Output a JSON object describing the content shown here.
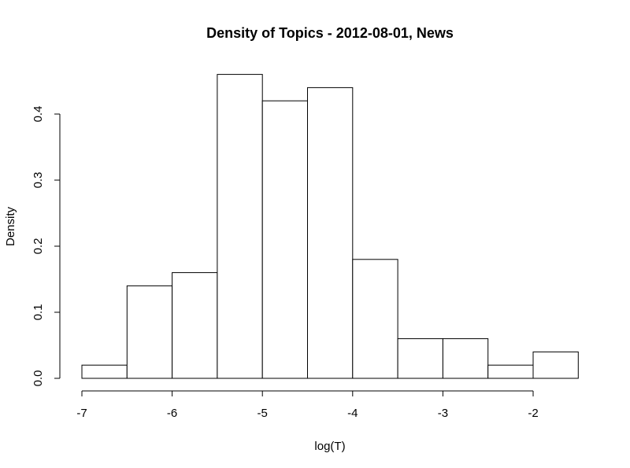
{
  "chart_data": {
    "type": "bar",
    "title": "Density of Topics - 2012-08-01, News",
    "xlabel": "log(T)",
    "ylabel": "Density",
    "bins": [
      {
        "x0": -7.0,
        "x1": -6.5,
        "density": 0.02
      },
      {
        "x0": -6.5,
        "x1": -6.0,
        "density": 0.14
      },
      {
        "x0": -6.0,
        "x1": -5.5,
        "density": 0.16
      },
      {
        "x0": -5.5,
        "x1": -5.0,
        "density": 0.46
      },
      {
        "x0": -5.0,
        "x1": -4.5,
        "density": 0.42
      },
      {
        "x0": -4.5,
        "x1": -4.0,
        "density": 0.44
      },
      {
        "x0": -4.0,
        "x1": -3.5,
        "density": 0.18
      },
      {
        "x0": -3.5,
        "x1": -3.0,
        "density": 0.06
      },
      {
        "x0": -3.0,
        "x1": -2.5,
        "density": 0.06
      },
      {
        "x0": -2.5,
        "x1": -2.0,
        "density": 0.02
      },
      {
        "x0": -2.0,
        "x1": -1.5,
        "density": 0.04
      }
    ],
    "xticks": [
      -7,
      -6,
      -5,
      -4,
      -3,
      -2
    ],
    "xtick_labels": [
      "-7",
      "-6",
      "-5",
      "-4",
      "-3",
      "-2"
    ],
    "yticks": [
      0.0,
      0.1,
      0.2,
      0.3,
      0.4
    ],
    "ytick_labels": [
      "0.0",
      "0.1",
      "0.2",
      "0.3",
      "0.4"
    ],
    "xlim": [
      -7,
      -1.5
    ],
    "ylim": [
      0,
      0.46
    ],
    "grid": false,
    "colors": {
      "bar_fill": "#ffffff",
      "bar_stroke": "#000000"
    }
  }
}
